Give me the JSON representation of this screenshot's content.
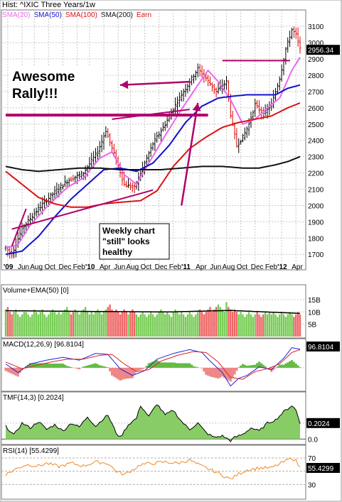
{
  "header": {
    "title": "Hist: ^IXIC Three Years/1w",
    "legend": [
      {
        "label": "SMA(20)",
        "color": "#ee66ee"
      },
      {
        "label": "SMA(50)",
        "color": "#1111cc"
      },
      {
        "label": "SMA(100)",
        "color": "#dd1111"
      },
      {
        "label": "SMA(200)",
        "color": "#111111"
      },
      {
        "label": "Earn",
        "color": "#dd1111"
      }
    ]
  },
  "annotations": {
    "rally": [
      "Awesome",
      "Rally!!!"
    ],
    "note": [
      "Weekly chart",
      "\"still\" looks",
      "healthy"
    ]
  },
  "chart_data": [
    {
      "type": "line",
      "panel": "price",
      "title": "Hist: ^IXIC Three Years/1w",
      "x_tick_labels": [
        "'09",
        "Jun",
        "Aug",
        "Oct",
        "Dec",
        "Feb",
        "'10",
        "Apr",
        "Jun",
        "Aug",
        "Oct",
        "Dec",
        "Feb",
        "'11",
        "Apr",
        "Jun",
        "Aug",
        "Oct",
        "Dec",
        "Feb",
        "'12",
        "Apr"
      ],
      "y_ticks": [
        1700,
        1800,
        1900,
        2000,
        2100,
        2200,
        2300,
        2400,
        2500,
        2600,
        2700,
        2800,
        2900,
        3000,
        3100
      ],
      "ylim": [
        1640,
        3140
      ],
      "last_value_label": "2956.34",
      "price_anchors": [
        [
          0,
          1740
        ],
        [
          3,
          1700
        ],
        [
          8,
          1860
        ],
        [
          16,
          1980
        ],
        [
          22,
          2060
        ],
        [
          30,
          2150
        ],
        [
          38,
          2200
        ],
        [
          45,
          2330
        ],
        [
          49,
          2460
        ],
        [
          54,
          2280
        ],
        [
          58,
          2130
        ],
        [
          63,
          2110
        ],
        [
          67,
          2230
        ],
        [
          72,
          2380
        ],
        [
          78,
          2500
        ],
        [
          84,
          2640
        ],
        [
          90,
          2760
        ],
        [
          94,
          2840
        ],
        [
          98,
          2780
        ],
        [
          103,
          2700
        ],
        [
          108,
          2760
        ],
        [
          110,
          2560
        ],
        [
          113,
          2370
        ],
        [
          116,
          2420
        ],
        [
          119,
          2500
        ],
        [
          122,
          2620
        ],
        [
          126,
          2560
        ],
        [
          130,
          2620
        ],
        [
          134,
          2780
        ],
        [
          137,
          2960
        ],
        [
          140,
          3080
        ],
        [
          142,
          3050
        ],
        [
          144,
          2960
        ]
      ],
      "series": [
        {
          "name": "SMA(20)",
          "color": "#ee66ee",
          "values": [
            [
              0,
              1740
            ],
            [
              6,
              1760
            ],
            [
              12,
              1880
            ],
            [
              20,
              1990
            ],
            [
              30,
              2110
            ],
            [
              38,
              2170
            ],
            [
              46,
              2290
            ],
            [
              52,
              2330
            ],
            [
              58,
              2190
            ],
            [
              64,
              2130
            ],
            [
              70,
              2260
            ],
            [
              78,
              2430
            ],
            [
              86,
              2590
            ],
            [
              94,
              2740
            ],
            [
              99,
              2830
            ],
            [
              104,
              2760
            ],
            [
              110,
              2650
            ],
            [
              116,
              2500
            ],
            [
              122,
              2530
            ],
            [
              128,
              2600
            ],
            [
              134,
              2660
            ],
            [
              140,
              2830
            ],
            [
              144,
              2910
            ]
          ]
        },
        {
          "name": "SMA(50)",
          "color": "#1111cc",
          "values": [
            [
              0,
              1700
            ],
            [
              8,
              1720
            ],
            [
              16,
              1810
            ],
            [
              24,
              1930
            ],
            [
              32,
              2040
            ],
            [
              40,
              2130
            ],
            [
              48,
              2220
            ],
            [
              56,
              2230
            ],
            [
              64,
              2210
            ],
            [
              72,
              2260
            ],
            [
              80,
              2370
            ],
            [
              88,
              2510
            ],
            [
              96,
              2610
            ],
            [
              104,
              2660
            ],
            [
              110,
              2670
            ],
            [
              118,
              2680
            ],
            [
              126,
              2680
            ],
            [
              132,
              2680
            ],
            [
              138,
              2720
            ],
            [
              144,
              2740
            ]
          ]
        },
        {
          "name": "SMA(100)",
          "color": "#dd1111",
          "values": [
            [
              0,
              2210
            ],
            [
              8,
              2130
            ],
            [
              16,
              2050
            ],
            [
              24,
              2010
            ],
            [
              32,
              1990
            ],
            [
              40,
              1990
            ],
            [
              48,
              2010
            ],
            [
              56,
              2020
            ],
            [
              66,
              2030
            ],
            [
              74,
              2090
            ],
            [
              82,
              2240
            ],
            [
              90,
              2350
            ],
            [
              98,
              2420
            ],
            [
              106,
              2480
            ],
            [
              114,
              2510
            ],
            [
              122,
              2530
            ],
            [
              130,
              2550
            ],
            [
              138,
              2600
            ],
            [
              144,
              2630
            ]
          ]
        },
        {
          "name": "SMA(200)",
          "color": "#111111",
          "values": [
            [
              0,
              2240
            ],
            [
              8,
              2220
            ],
            [
              16,
              2210
            ],
            [
              26,
              2220
            ],
            [
              36,
              2230
            ],
            [
              46,
              2230
            ],
            [
              56,
              2220
            ],
            [
              66,
              2220
            ],
            [
              76,
              2220
            ],
            [
              86,
              2230
            ],
            [
              96,
              2240
            ],
            [
              106,
              2240
            ],
            [
              116,
              2230
            ],
            [
              124,
              2230
            ],
            [
              132,
              2250
            ],
            [
              138,
              2270
            ],
            [
              144,
              2300
            ]
          ]
        }
      ],
      "drawn_lines": [
        {
          "color": "#b0006a",
          "from": [
            0,
            2555
          ],
          "to": [
            99,
            2555
          ]
        },
        {
          "color": "#b0006a",
          "from": [
            106,
            2890
          ],
          "to": [
            152,
            2890
          ]
        },
        {
          "color": "#b0006a",
          "from": [
            3,
            1855
          ],
          "to": [
            72,
            2095
          ]
        },
        {
          "color": "#b0006a",
          "from": [
            52,
            2530
          ],
          "to": [
            90,
            2590
          ]
        },
        {
          "color": "#b0006a",
          "from": [
            3,
            1750
          ],
          "to": [
            10,
            1980
          ]
        }
      ],
      "arrows": [
        {
          "color": "#b0006a",
          "from": [
            90,
            2760
          ],
          "to": [
            56,
            2740
          ]
        },
        {
          "color": "#b0006a",
          "from": [
            86,
            2000
          ],
          "to": [
            94,
            2630
          ]
        }
      ]
    },
    {
      "type": "bar",
      "panel": "volume",
      "title": "Volume+EMA(50) [0]",
      "y_ticks": [
        "5B",
        "10B",
        "15B"
      ],
      "ylim": [
        0,
        17
      ],
      "values": [
        11,
        12,
        10,
        9,
        10,
        11,
        9,
        8,
        9,
        10,
        10,
        9,
        8,
        9,
        11,
        10,
        9,
        10,
        11,
        9,
        8,
        9,
        10,
        11,
        10,
        9,
        10,
        9,
        10,
        11,
        12,
        10,
        9,
        10,
        11,
        10,
        9,
        10,
        11,
        12,
        10,
        9,
        10,
        9,
        10,
        11,
        10,
        9,
        10,
        11,
        12,
        13,
        11,
        10,
        11,
        10,
        9,
        10,
        11,
        10,
        9,
        10,
        11,
        10,
        9,
        8,
        9,
        10,
        9,
        8,
        9,
        10,
        9,
        8,
        9,
        10,
        11,
        10,
        9,
        10,
        9,
        8,
        10,
        11,
        10,
        9,
        10,
        9,
        8,
        9,
        10,
        9,
        8,
        9,
        10,
        11,
        10,
        9,
        10,
        11,
        12,
        10,
        11,
        12,
        13,
        12,
        11,
        10,
        14,
        12,
        11,
        10,
        11,
        10,
        9,
        10,
        9,
        8,
        9,
        10,
        9,
        8,
        9,
        10,
        9,
        8,
        9,
        10,
        9,
        10,
        9,
        10,
        9,
        8,
        9,
        10,
        9,
        8,
        9,
        10,
        9,
        8,
        9,
        10,
        9
      ],
      "ema": [
        [
          0,
          10.5
        ],
        [
          40,
          10.2
        ],
        [
          80,
          10
        ],
        [
          110,
          10.6
        ],
        [
          144,
          9.4
        ]
      ]
    },
    {
      "type": "line",
      "panel": "macd",
      "title": "MACD(12,26,9) [96.8104]",
      "last_value_label": "96.8104",
      "series": [
        {
          "name": "MACD",
          "color": "#2222dd",
          "values": [
            [
              0,
              20
            ],
            [
              6,
              -25
            ],
            [
              12,
              20
            ],
            [
              20,
              40
            ],
            [
              28,
              55
            ],
            [
              36,
              40
            ],
            [
              44,
              75
            ],
            [
              50,
              70
            ],
            [
              56,
              -5
            ],
            [
              62,
              -40
            ],
            [
              68,
              -15
            ],
            [
              74,
              45
            ],
            [
              82,
              75
            ],
            [
              90,
              95
            ],
            [
              96,
              80
            ],
            [
              100,
              35
            ],
            [
              106,
              -25
            ],
            [
              110,
              -95
            ],
            [
              114,
              -55
            ],
            [
              118,
              -40
            ],
            [
              124,
              5
            ],
            [
              130,
              -10
            ],
            [
              136,
              50
            ],
            [
              140,
              105
            ],
            [
              144,
              97
            ]
          ]
        },
        {
          "name": "Signal",
          "color": "#dd2222",
          "values": [
            [
              0,
              30
            ],
            [
              8,
              -5
            ],
            [
              14,
              10
            ],
            [
              22,
              30
            ],
            [
              30,
              45
            ],
            [
              38,
              45
            ],
            [
              46,
              65
            ],
            [
              52,
              70
            ],
            [
              58,
              20
            ],
            [
              64,
              -20
            ],
            [
              70,
              -10
            ],
            [
              76,
              35
            ],
            [
              84,
              65
            ],
            [
              92,
              85
            ],
            [
              98,
              80
            ],
            [
              104,
              30
            ],
            [
              110,
              -50
            ],
            [
              116,
              -60
            ],
            [
              122,
              -20
            ],
            [
              128,
              -5
            ],
            [
              134,
              20
            ],
            [
              140,
              80
            ],
            [
              144,
              95
            ]
          ]
        }
      ]
    },
    {
      "type": "area",
      "panel": "tmf",
      "title": "TMF(14,3) [0.2024]",
      "y_ticks": [
        "0.0",
        "0.2"
      ],
      "ylim": [
        -0.05,
        0.5
      ],
      "last_value_label": "0.2024",
      "values": [
        [
          0,
          0.16
        ],
        [
          4,
          0.05
        ],
        [
          8,
          0.2
        ],
        [
          12,
          0.14
        ],
        [
          16,
          0.22
        ],
        [
          20,
          0.12
        ],
        [
          24,
          0.18
        ],
        [
          28,
          0.1
        ],
        [
          32,
          0.2
        ],
        [
          36,
          0.15
        ],
        [
          40,
          0.28
        ],
        [
          44,
          0.16
        ],
        [
          48,
          0.26
        ],
        [
          50,
          0.3
        ],
        [
          54,
          0.08
        ],
        [
          56,
          0.02
        ],
        [
          60,
          0.18
        ],
        [
          64,
          0.26
        ],
        [
          66,
          0.42
        ],
        [
          70,
          0.28
        ],
        [
          74,
          0.44
        ],
        [
          78,
          0.3
        ],
        [
          82,
          0.36
        ],
        [
          86,
          0.22
        ],
        [
          90,
          0.12
        ],
        [
          94,
          0.2
        ],
        [
          98,
          0.08
        ],
        [
          102,
          0.02
        ],
        [
          106,
          0.04
        ],
        [
          110,
          -0.02
        ],
        [
          112,
          0.02
        ],
        [
          116,
          0.06
        ],
        [
          120,
          0.14
        ],
        [
          124,
          0.1
        ],
        [
          128,
          0.2
        ],
        [
          132,
          0.24
        ],
        [
          136,
          0.34
        ],
        [
          140,
          0.42
        ],
        [
          142,
          0.36
        ],
        [
          144,
          0.2
        ]
      ]
    },
    {
      "type": "line",
      "panel": "rsi",
      "title": "RSI(14) [55.4299]",
      "y_ticks": [
        30,
        50,
        70
      ],
      "ylim": [
        10,
        85
      ],
      "last_value_label": "55.4299",
      "values": [
        [
          0,
          45
        ],
        [
          6,
          55
        ],
        [
          10,
          60
        ],
        [
          16,
          58
        ],
        [
          20,
          62
        ],
        [
          26,
          57
        ],
        [
          32,
          62
        ],
        [
          38,
          58
        ],
        [
          44,
          64
        ],
        [
          50,
          62
        ],
        [
          54,
          50
        ],
        [
          58,
          45
        ],
        [
          62,
          52
        ],
        [
          66,
          60
        ],
        [
          72,
          62
        ],
        [
          78,
          64
        ],
        [
          84,
          62
        ],
        [
          90,
          67
        ],
        [
          94,
          60
        ],
        [
          98,
          55
        ],
        [
          102,
          50
        ],
        [
          106,
          44
        ],
        [
          110,
          38
        ],
        [
          114,
          46
        ],
        [
          118,
          52
        ],
        [
          124,
          55
        ],
        [
          130,
          55
        ],
        [
          136,
          64
        ],
        [
          140,
          70
        ],
        [
          142,
          66
        ],
        [
          144,
          55
        ]
      ]
    }
  ]
}
